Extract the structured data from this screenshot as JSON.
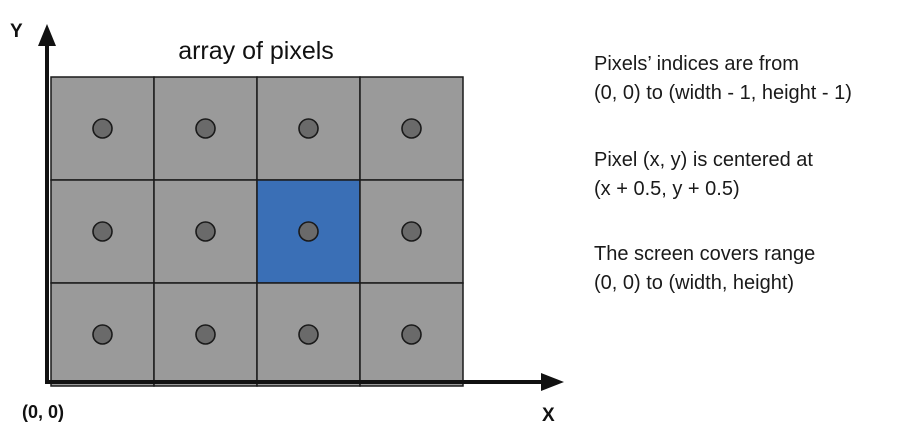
{
  "title": "array of pixels",
  "axes": {
    "y_label": "Y",
    "x_label": "X",
    "origin_label": "(0, 0)"
  },
  "grid": {
    "columns": 4,
    "rows": 3,
    "highlighted_cell": {
      "col": 2,
      "row": 1
    },
    "cell_color": "#9a9a9a",
    "highlight_color": "#3a6fb6",
    "dot_color": "#6a6a6a",
    "line_color": "#1a1a1a"
  },
  "notes": [
    {
      "lines": [
        "Pixels’ indices are from",
        "(0, 0) to (width - 1, height - 1)"
      ]
    },
    {
      "lines": [
        "Pixel (x, y) is centered at",
        "(x + 0.5, y + 0.5)"
      ]
    },
    {
      "lines": [
        "The screen covers range",
        "(0, 0) to (width, height)"
      ]
    }
  ]
}
